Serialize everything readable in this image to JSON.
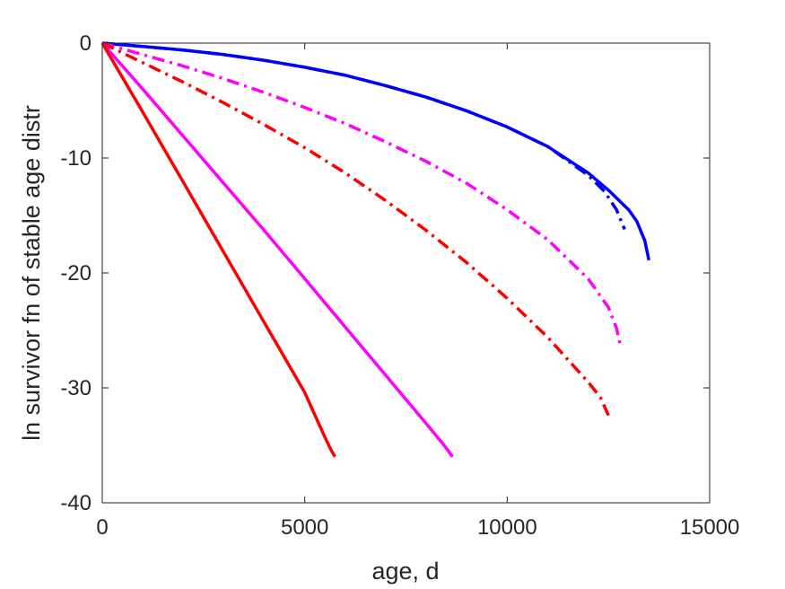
{
  "chart_data": {
    "type": "line",
    "xlabel": "age, d",
    "ylabel": "ln survivor fn of stable age distr",
    "xlim": [
      0,
      15000
    ],
    "ylim": [
      -40,
      0
    ],
    "xticks": [
      0,
      5000,
      10000,
      15000
    ],
    "yticks": [
      0,
      -10,
      -20,
      -30,
      -40
    ],
    "grid": false,
    "legend": "none",
    "series": [
      {
        "color": "#0000ff",
        "style": "solid",
        "x": [
          0,
          1000,
          2000,
          3000,
          4000,
          5000,
          6000,
          7000,
          8000,
          9000,
          10000,
          11000,
          12000,
          12500,
          13000,
          13200,
          13400,
          13500
        ],
        "y": [
          0,
          -0.3,
          -0.6,
          -1.0,
          -1.5,
          -2.1,
          -2.8,
          -3.7,
          -4.7,
          -5.9,
          -7.3,
          -9.0,
          -11.3,
          -12.8,
          -14.5,
          -15.5,
          -17.2,
          -18.9
        ]
      },
      {
        "color": "#0000ff",
        "style": "dashdot",
        "x": [
          0,
          1000,
          2000,
          3000,
          4000,
          5000,
          6000,
          7000,
          8000,
          9000,
          10000,
          11000,
          12000,
          12400,
          12700,
          12900
        ],
        "y": [
          0,
          -0.3,
          -0.6,
          -1.0,
          -1.5,
          -2.1,
          -2.8,
          -3.7,
          -4.7,
          -5.9,
          -7.3,
          -9.0,
          -11.5,
          -12.9,
          -14.5,
          -16.2
        ]
      },
      {
        "color": "#ff00ff",
        "style": "dashdot",
        "x": [
          0,
          1000,
          2000,
          3000,
          4000,
          5000,
          6000,
          7000,
          8000,
          9000,
          10000,
          11000,
          12000,
          12500,
          12700,
          12800
        ],
        "y": [
          0,
          -1.0,
          -2.0,
          -3.1,
          -4.3,
          -5.6,
          -7.0,
          -8.6,
          -10.3,
          -12.2,
          -14.5,
          -17.1,
          -20.5,
          -23.0,
          -24.8,
          -26.4
        ]
      },
      {
        "color": "#ff0000",
        "style": "dashdot",
        "x": [
          0,
          1000,
          2000,
          3000,
          4000,
          5000,
          6000,
          7000,
          8000,
          9000,
          10000,
          11000,
          12000,
          12300,
          12500
        ],
        "y": [
          0,
          -1.7,
          -3.4,
          -5.2,
          -7.1,
          -9.1,
          -11.3,
          -13.7,
          -16.3,
          -19.1,
          -22.2,
          -25.6,
          -29.5,
          -30.8,
          -32.4
        ]
      },
      {
        "color": "#ff00ff",
        "style": "solid",
        "x": [
          0,
          1000,
          2000,
          3000,
          4000,
          5000,
          6000,
          7000,
          8000,
          8400,
          8550,
          8650
        ],
        "y": [
          0,
          -4.0,
          -8.1,
          -12.2,
          -16.3,
          -20.5,
          -24.7,
          -28.9,
          -33.1,
          -34.8,
          -35.5,
          -36.0
        ]
      },
      {
        "color": "#ff0000",
        "style": "solid",
        "x": [
          0,
          1000,
          2000,
          3000,
          4000,
          5000,
          5500,
          5650,
          5750
        ],
        "y": [
          0,
          -6.0,
          -12.1,
          -18.2,
          -24.3,
          -30.4,
          -34.3,
          -35.4,
          -36.0
        ]
      }
    ]
  }
}
